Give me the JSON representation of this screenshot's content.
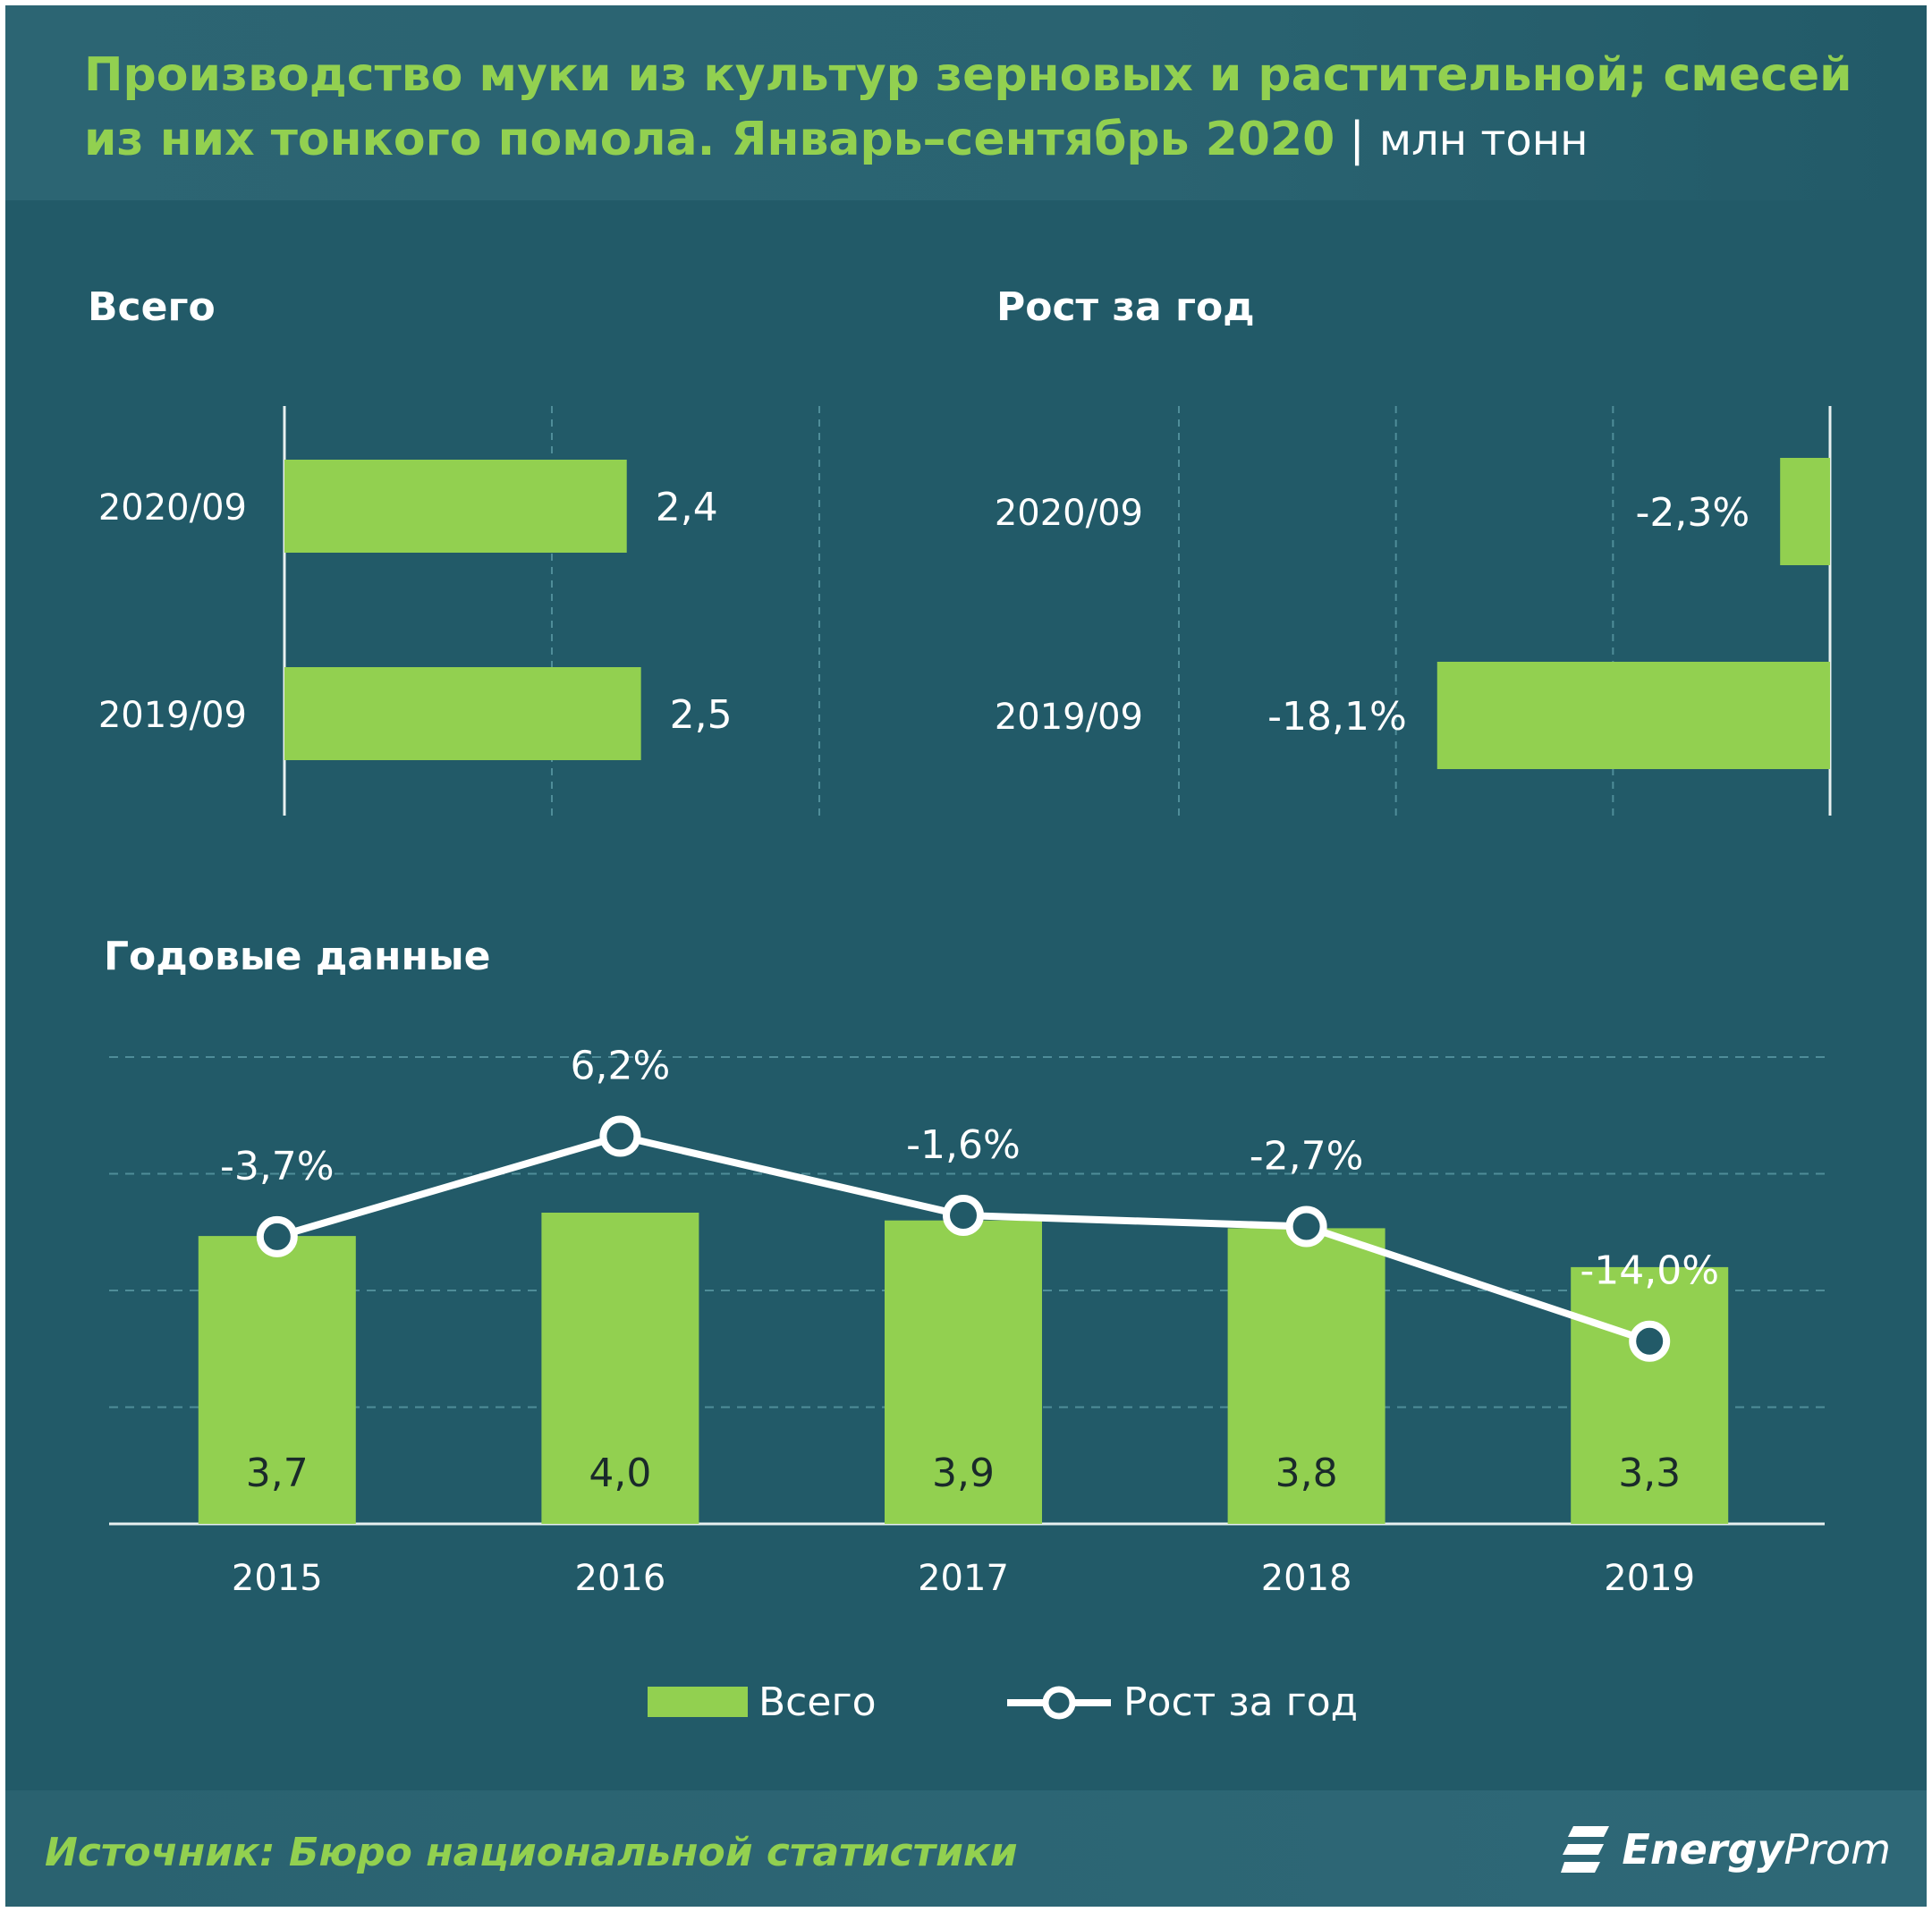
{
  "header": {
    "title": "Производство муки из культур зерновых и растительной; смесей из них тонкого помола. Январь–сентябрь 2020",
    "unit": "млн тонн"
  },
  "colors": {
    "background": "#225a68",
    "bar": "#92d050",
    "line": "#ffffff",
    "title": "#92d050"
  },
  "chart_data": [
    {
      "type": "bar",
      "orientation": "horizontal",
      "title": "Всего",
      "categories": [
        "2020/09",
        "2019/09"
      ],
      "values": [
        2.4,
        2.5
      ],
      "value_labels": [
        "2,4",
        "2,5"
      ],
      "xlim": [
        0,
        3.75
      ],
      "grid": true
    },
    {
      "type": "bar",
      "orientation": "horizontal",
      "title": "Рост за  год",
      "categories": [
        "2020/09",
        "2019/09"
      ],
      "values": [
        -2.3,
        -18.1
      ],
      "value_labels": [
        "-2,3%",
        "-18,1%"
      ],
      "xlim": [
        -30,
        0
      ],
      "grid": true
    },
    {
      "type": "bar",
      "title": "Годовые данные",
      "categories": [
        "2015",
        "2016",
        "2017",
        "2018",
        "2019"
      ],
      "series": [
        {
          "name": "Всего",
          "type": "bar",
          "values": [
            3.7,
            4.0,
            3.9,
            3.8,
            3.3
          ],
          "value_labels": [
            "3,7",
            "4,0",
            "3,9",
            "3,8",
            "3,3"
          ]
        },
        {
          "name": "Рост за год",
          "type": "line",
          "values": [
            -3.7,
            6.2,
            -1.6,
            -2.7,
            -14.0
          ],
          "value_labels": [
            "-3,7%",
            "6,2%",
            "-1,6%",
            "-2,7%",
            "-14,0%"
          ]
        }
      ],
      "ylim_bars": [
        0,
        6
      ],
      "ylim_line": [
        -32,
        14
      ],
      "grid": true,
      "legend_position": "bottom"
    }
  ],
  "footer": {
    "source": "Источник: Бюро национальной  статистики",
    "logo_bold": "Energy",
    "logo_light": "Prom"
  }
}
